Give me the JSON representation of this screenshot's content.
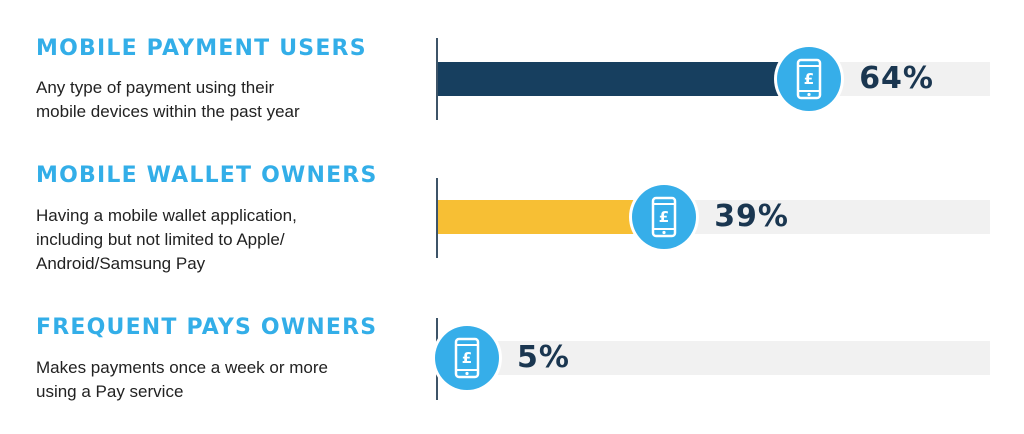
{
  "chart_data": {
    "type": "bar",
    "orientation": "horizontal",
    "categories": [
      "MOBILE PAYMENT USERS",
      "MOBILE WALLET OWNERS",
      "FREQUENT PAYS OWNERS"
    ],
    "values": [
      64,
      39,
      5
    ],
    "xlim": [
      0,
      100
    ],
    "unit": "%"
  },
  "rows": [
    {
      "title": "MOBILE PAYMENT USERS",
      "description_lines": [
        "Any type of payment using their",
        "mobile devices within the past year"
      ],
      "value_label": "64%",
      "color": "#173f5f"
    },
    {
      "title": "MOBILE WALLET OWNERS",
      "description_lines": [
        "Having a mobile wallet application,",
        "including but not limited to Apple/",
        "Android/Samsung Pay"
      ],
      "value_label": "39%",
      "color": "#f7bf34"
    },
    {
      "title": "FREQUENT PAYS OWNERS",
      "description_lines": [
        "Makes payments once a week or more",
        "using a Pay service"
      ],
      "value_label": "5%",
      "color": "#f16322"
    }
  ],
  "icon": {
    "name": "mobile-phone-pound-icon",
    "symbol": "£",
    "badge_color": "#36aee9"
  }
}
